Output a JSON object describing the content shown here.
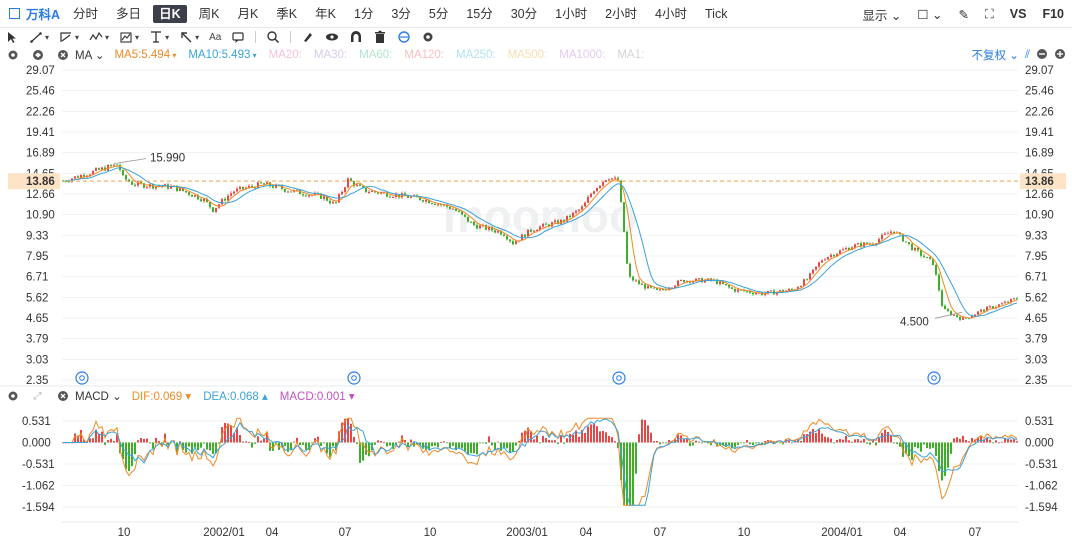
{
  "toolbar": {
    "symbol": "万科A",
    "periods": [
      "分时",
      "多日",
      "日K",
      "周K",
      "月K",
      "季K",
      "年K",
      "1分",
      "3分",
      "5分",
      "15分",
      "30分",
      "1小时",
      "2小时",
      "4小时",
      "Tick"
    ],
    "active_period": "日K",
    "display_label": "显示",
    "vs_label": "VS",
    "f10_label": "F10"
  },
  "main_legend": {
    "indicator": "MA",
    "items": [
      {
        "label": "MA5:5.494",
        "color": "#f08a24",
        "active": true
      },
      {
        "label": "MA10:5.493",
        "color": "#3ba3d8",
        "active": true
      },
      {
        "label": "MA20:",
        "color": "#f0a8c8",
        "active": false
      },
      {
        "label": "MA30:",
        "color": "#c8b4e6",
        "active": false
      },
      {
        "label": "MA60:",
        "color": "#8fd8b8",
        "active": false
      },
      {
        "label": "MA120:",
        "color": "#f5a6a6",
        "active": false
      },
      {
        "label": "MA250:",
        "color": "#8fd4f0",
        "active": false
      },
      {
        "label": "MA500:",
        "color": "#f5d08a",
        "active": false
      },
      {
        "label": "MA1000:",
        "color": "#d8b4e8",
        "active": false
      },
      {
        "label": "MA1:",
        "color": "#c0c0c0",
        "active": false
      }
    ],
    "adjust_label": "不复权"
  },
  "macd_legend": {
    "indicator": "MACD",
    "dif": "DIF:0.069",
    "dea": "DEA:0.068",
    "macd": "MACD:0.001"
  },
  "colors": {
    "up": "#e64848",
    "down": "#3fae2a",
    "ma5": "#f08a24",
    "ma10": "#3ba3d8",
    "price_line": "#f5a04a",
    "accent": "#2b7be5"
  },
  "price_axis": {
    "ticks": [
      "29.07",
      "25.46",
      "22.26",
      "19.41",
      "16.89",
      "14.65",
      "12.66",
      "10.90",
      "9.33",
      "7.95",
      "6.71",
      "5.62",
      "4.65",
      "3.79",
      "3.03",
      "2.35"
    ],
    "current_price": "13.86",
    "high_label": "15.990",
    "low_label": "4.500"
  },
  "macd_axis": {
    "ticks": [
      "0.531",
      "0.000",
      "-0.531",
      "-1.062",
      "-1.594"
    ]
  },
  "time_axis": {
    "labels": [
      "10",
      "2002/01",
      "04",
      "07",
      "10",
      "2003/01",
      "04",
      "07",
      "10",
      "2004/01",
      "04",
      "07"
    ]
  },
  "watermark": "moomoo",
  "event_markers": 4
}
